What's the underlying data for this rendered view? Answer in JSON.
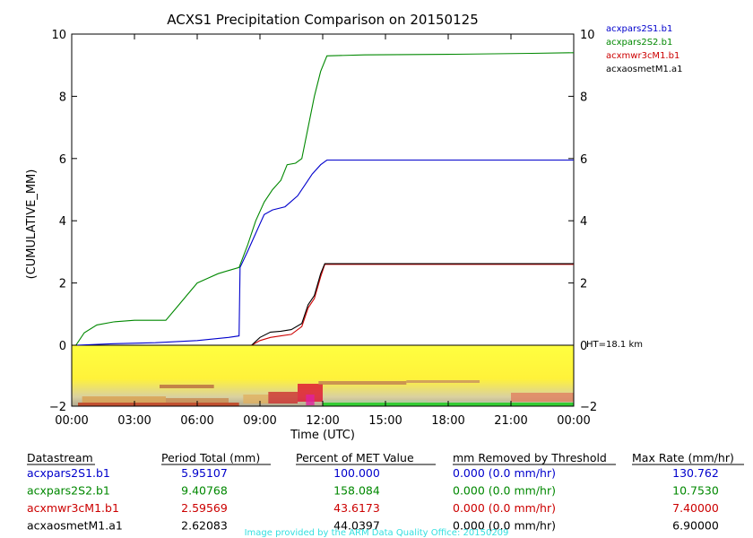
{
  "chart_data": {
    "type": "line",
    "title": "ACXS1 Precipitation Comparison on 20150125",
    "xlabel": "Time (UTC)",
    "ylabel": "(CUMULATIVE_MM)",
    "xlim": [
      0,
      24
    ],
    "ylim": [
      0,
      10
    ],
    "x_ticks": [
      0,
      3,
      6,
      9,
      12,
      15,
      18,
      21,
      24
    ],
    "x_tick_labels": [
      "00:00",
      "03:00",
      "06:00",
      "09:00",
      "12:00",
      "15:00",
      "18:00",
      "21:00",
      "00:00"
    ],
    "y_ticks": [
      0,
      2,
      4,
      6,
      8,
      10
    ],
    "y_tick_labels": [
      "0",
      "2",
      "4",
      "6",
      "8",
      "10"
    ],
    "series": [
      {
        "name": "acxpars2S1.b1",
        "color": "#0000cc",
        "x": [
          0.2,
          2.0,
          4.0,
          6.0,
          7.5,
          8.0,
          8.05,
          8.4,
          8.8,
          9.2,
          9.6,
          10.2,
          10.8,
          11.2,
          11.5,
          11.9,
          12.2,
          14,
          18,
          24
        ],
        "y": [
          0.0,
          0.05,
          0.08,
          0.15,
          0.25,
          0.3,
          2.5,
          3.0,
          3.6,
          4.2,
          4.35,
          4.45,
          4.8,
          5.2,
          5.5,
          5.8,
          5.95,
          5.95,
          5.95,
          5.95
        ]
      },
      {
        "name": "acxpars2S2.b1",
        "color": "#008800",
        "x": [
          0.2,
          0.6,
          1.2,
          2.0,
          3.0,
          4.5,
          5.0,
          5.5,
          6.0,
          6.5,
          7.0,
          7.5,
          8.0,
          8.4,
          8.8,
          9.2,
          9.6,
          10.0,
          10.3,
          10.7,
          11.0,
          11.3,
          11.6,
          11.9,
          12.2,
          14,
          18,
          22,
          24
        ],
        "y": [
          0.0,
          0.4,
          0.65,
          0.75,
          0.8,
          0.8,
          1.2,
          1.6,
          2.0,
          2.15,
          2.3,
          2.4,
          2.5,
          3.2,
          4.0,
          4.6,
          5.0,
          5.3,
          5.8,
          5.85,
          6.0,
          7.0,
          8.0,
          8.8,
          9.3,
          9.33,
          9.35,
          9.38,
          9.4
        ]
      },
      {
        "name": "acxmwr3cM1.b1",
        "color": "#cc0000",
        "x": [
          8.6,
          9.0,
          9.5,
          10.0,
          10.5,
          11.0,
          11.3,
          11.6,
          11.9,
          12.1,
          14,
          18,
          24
        ],
        "y": [
          0.0,
          0.15,
          0.25,
          0.3,
          0.35,
          0.6,
          1.2,
          1.5,
          2.2,
          2.6,
          2.6,
          2.6,
          2.6
        ]
      },
      {
        "name": "acxaosmetM1.a1",
        "color": "#000000",
        "x": [
          8.6,
          9.0,
          9.5,
          10.0,
          10.5,
          11.0,
          11.3,
          11.6,
          11.9,
          12.1,
          14,
          18,
          24
        ],
        "y": [
          0.0,
          0.25,
          0.42,
          0.45,
          0.5,
          0.7,
          1.3,
          1.6,
          2.3,
          2.62,
          2.62,
          2.62,
          2.62
        ]
      }
    ],
    "radar_panel": {
      "ylim": [
        -2,
        0
      ],
      "y_ticks": [
        -2,
        0
      ],
      "y_tick_labels": [
        "−2",
        "0"
      ],
      "ht_label": "HT=18.1 km"
    }
  },
  "table": {
    "headers": [
      "Datastream",
      "Period Total (mm)",
      "Percent of MET Value",
      "mm Removed by Threshold",
      "Max Rate (mm/hr)"
    ],
    "rows": [
      {
        "color": "#0000cc",
        "cells": [
          "acxpars2S1.b1",
          "5.95107",
          "100.000",
          "0.000 (0.0 mm/hr)",
          "130.762"
        ]
      },
      {
        "color": "#008800",
        "cells": [
          "acxpars2S2.b1",
          "9.40768",
          "158.084",
          "0.000 (0.0 mm/hr)",
          "10.7530"
        ]
      },
      {
        "color": "#cc0000",
        "cells": [
          "acxmwr3cM1.b1",
          "2.59569",
          "43.6173",
          "0.000 (0.0 mm/hr)",
          "7.40000"
        ]
      },
      {
        "color": "#000000",
        "cells": [
          "acxaosmetM1.a1",
          "2.62083",
          "44.0397",
          "0.000 (0.0 mm/hr)",
          "6.90000"
        ]
      }
    ]
  },
  "credit": "Image provided by the ARM Data Quality Office: 20150209"
}
